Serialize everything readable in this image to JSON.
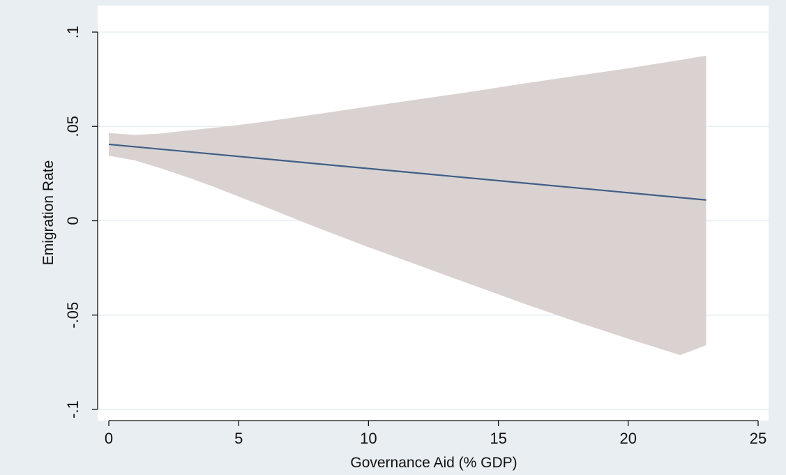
{
  "chart_data": {
    "type": "line",
    "title": "",
    "xlabel": "Governance Aid (% GDP)",
    "ylabel": "Emigration Rate",
    "xlim": [
      0,
      25
    ],
    "ylim": [
      -0.1,
      0.1
    ],
    "x_ticks": [
      0,
      5,
      10,
      15,
      20,
      25
    ],
    "x_tick_labels": [
      "0",
      "5",
      "10",
      "15",
      "20",
      "25"
    ],
    "y_ticks": [
      -0.1,
      -0.05,
      0,
      0.05,
      0.1
    ],
    "y_tick_labels": [
      "-.1",
      "-.05",
      "0",
      ".05",
      ".1"
    ],
    "grid": "horizontal",
    "legend": "none",
    "series": [
      {
        "kind": "line",
        "x": [
          0,
          23
        ],
        "y": [
          0.0405,
          0.011
        ]
      },
      {
        "kind": "confidence-band",
        "x": [
          0,
          1,
          2,
          3,
          4,
          5,
          6,
          8,
          10,
          12,
          14,
          16,
          18,
          20,
          22,
          23
        ],
        "upper": [
          0.0465,
          0.0455,
          0.0462,
          0.0478,
          0.0492,
          0.0508,
          0.0525,
          0.0565,
          0.0605,
          0.0645,
          0.0685,
          0.0728,
          0.0768,
          0.0808,
          0.0852,
          0.0875
        ],
        "lower": [
          0.0345,
          0.032,
          0.0278,
          0.0232,
          0.0182,
          0.0128,
          0.0075,
          -0.0035,
          -0.014,
          -0.024,
          -0.034,
          -0.044,
          -0.0535,
          -0.0625,
          -0.0712,
          -0.066
        ]
      }
    ],
    "colors": {
      "line": "#3f5e86",
      "band": "#d9d2d0",
      "plot_bg": "#ffffff",
      "outer_bg": "#e9eef2",
      "grid": "#e7edf1",
      "axis": "#111111"
    }
  }
}
